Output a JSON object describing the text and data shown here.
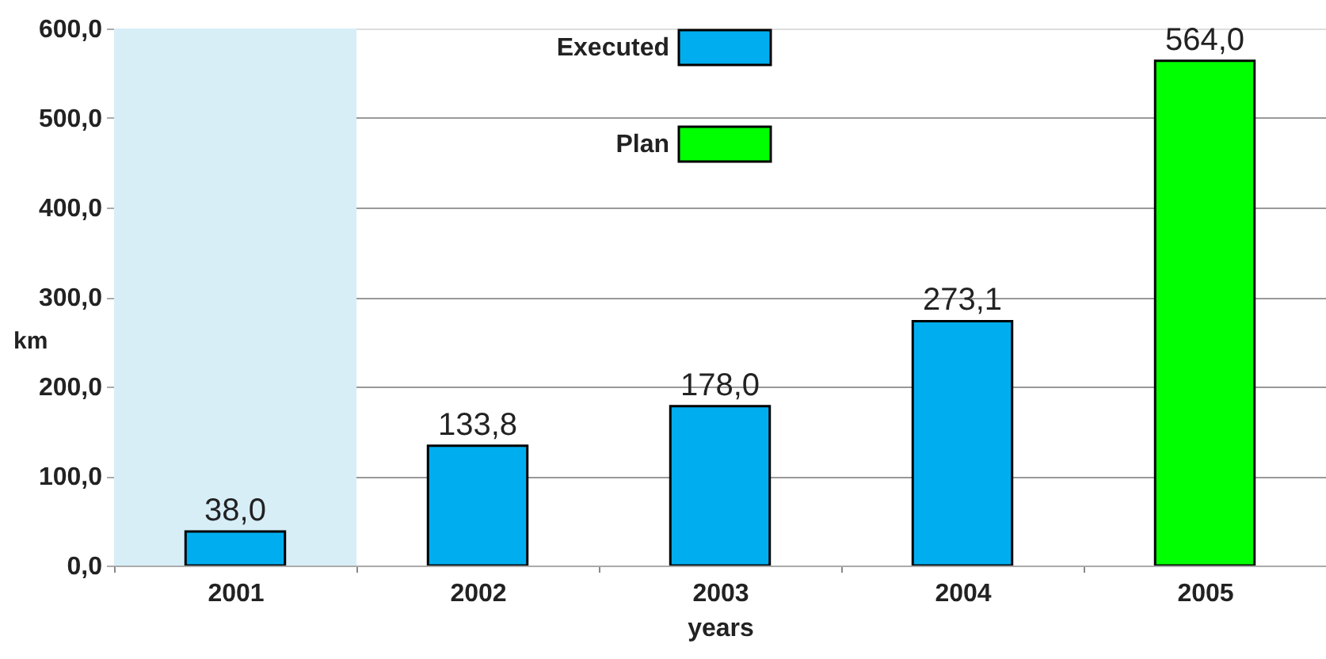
{
  "chart_data": {
    "type": "bar",
    "xlabel": "years",
    "ylabel": "km",
    "categories": [
      "2001",
      "2002",
      "2003",
      "2004",
      "2005"
    ],
    "series": [
      {
        "name": "Executed",
        "color": "#00aeef",
        "values": [
          38.0,
          133.8,
          178.0,
          273.1,
          null
        ],
        "value_labels": [
          "38,0",
          "133,8",
          "178,0",
          "273,1",
          null
        ]
      },
      {
        "name": "Plan",
        "color": "#00ff00",
        "values": [
          null,
          null,
          null,
          null,
          564.0
        ],
        "value_labels": [
          null,
          null,
          null,
          null,
          "564,0"
        ]
      }
    ],
    "ylim": [
      0,
      600
    ],
    "yticks": [
      {
        "value": 0,
        "label": "0,0"
      },
      {
        "value": 100,
        "label": "100,0"
      },
      {
        "value": 200,
        "label": "200,0"
      },
      {
        "value": 300,
        "label": "300,0"
      },
      {
        "value": 400,
        "label": "400,0"
      },
      {
        "value": 500,
        "label": "500,0"
      },
      {
        "value": 600,
        "label": "600,0"
      }
    ],
    "grid": "y",
    "legend": "top",
    "bands": [
      {
        "axis": "x",
        "from": "2001",
        "to": "2001",
        "color": "#d7eef7"
      }
    ]
  }
}
